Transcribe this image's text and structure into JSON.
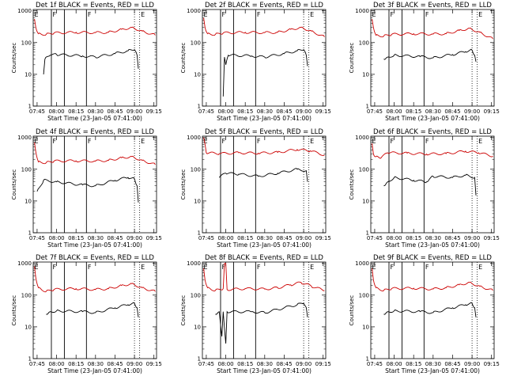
{
  "figure": {
    "x_label": "Start Time (23-Jan-05 07:41:00)",
    "y_label": "Counts/sec",
    "x_ticks": [
      "07:45",
      "08:00",
      "08:15",
      "08:30",
      "08:45",
      "09:00",
      "09:15"
    ],
    "y_ticks": [
      "1",
      "10",
      "100",
      "1000"
    ],
    "flag_labels": [
      "E",
      "F",
      "F",
      "E"
    ]
  },
  "chart_data": [
    {
      "type": "line",
      "title": "Det 1f BLACK = Events, RED = LLD",
      "xlim": [
        "07:42",
        "09:17"
      ],
      "ylim": [
        1,
        1100
      ],
      "y_scale": "log",
      "series": [
        {
          "color": "#cc0000",
          "values": [
            [
              "07:43",
              550
            ],
            [
              "07:44",
              300
            ],
            [
              "07:46",
              190
            ],
            [
              "07:52",
              180
            ],
            [
              "07:58",
              200
            ],
            [
              "08:15",
              210
            ],
            [
              "08:30",
              205
            ],
            [
              "08:40",
              210
            ],
            [
              "08:50",
              260
            ],
            [
              "08:58",
              300
            ],
            [
              "09:06",
              230
            ],
            [
              "09:16",
              170
            ]
          ]
        },
        {
          "color": "#000000",
          "values": [
            [
              "07:50",
              10
            ],
            [
              "07:51",
              30
            ],
            [
              "07:55",
              40
            ],
            [
              "08:00",
              42
            ],
            [
              "08:20",
              38
            ],
            [
              "08:30",
              35
            ],
            [
              "08:45",
              45
            ],
            [
              "08:55",
              55
            ],
            [
              "09:00",
              60
            ],
            [
              "09:02",
              40
            ],
            [
              "09:03",
              15
            ]
          ]
        }
      ],
      "vlines_solid": [
        "07:56",
        "08:06",
        "08:23"
      ],
      "vlines_dotted": [
        "09:00",
        "09:04"
      ]
    },
    {
      "type": "line",
      "title": "Det 2f BLACK = Events, RED = LLD",
      "xlim": [
        "07:42",
        "09:17"
      ],
      "ylim": [
        1,
        1100
      ],
      "y_scale": "log",
      "series": [
        {
          "color": "#cc0000",
          "values": [
            [
              "07:43",
              600
            ],
            [
              "07:44",
              300
            ],
            [
              "07:46",
              190
            ],
            [
              "07:52",
              180
            ],
            [
              "07:58",
              200
            ],
            [
              "08:15",
              210
            ],
            [
              "08:30",
              205
            ],
            [
              "08:40",
              210
            ],
            [
              "08:50",
              260
            ],
            [
              "08:58",
              300
            ],
            [
              "09:06",
              230
            ],
            [
              "09:16",
              150
            ]
          ]
        },
        {
          "color": "#000000",
          "values": [
            [
              "07:58",
              2
            ],
            [
              "07:59",
              35
            ],
            [
              "08:00",
              20
            ],
            [
              "08:02",
              40
            ],
            [
              "08:20",
              38
            ],
            [
              "08:30",
              35
            ],
            [
              "08:45",
              45
            ],
            [
              "08:55",
              55
            ],
            [
              "09:00",
              60
            ],
            [
              "09:02",
              40
            ],
            [
              "09:03",
              18
            ]
          ]
        }
      ],
      "vlines_solid": [
        "07:56",
        "08:06",
        "08:23"
      ],
      "vlines_dotted": [
        "09:00",
        "09:04"
      ]
    },
    {
      "type": "line",
      "title": "Det 3f BLACK = Events, RED = LLD",
      "xlim": [
        "07:42",
        "09:17"
      ],
      "ylim": [
        1,
        1100
      ],
      "y_scale": "log",
      "series": [
        {
          "color": "#cc0000",
          "values": [
            [
              "07:43",
              550
            ],
            [
              "07:44",
              300
            ],
            [
              "07:46",
              170
            ],
            [
              "07:52",
              160
            ],
            [
              "07:58",
              180
            ],
            [
              "08:15",
              190
            ],
            [
              "08:30",
              185
            ],
            [
              "08:40",
              190
            ],
            [
              "08:50",
              240
            ],
            [
              "08:58",
              280
            ],
            [
              "09:06",
              210
            ],
            [
              "09:16",
              130
            ]
          ]
        },
        {
          "color": "#000000",
          "values": [
            [
              "07:52",
              30
            ],
            [
              "07:55",
              35
            ],
            [
              "08:00",
              40
            ],
            [
              "08:20",
              36
            ],
            [
              "08:30",
              33
            ],
            [
              "08:45",
              42
            ],
            [
              "08:55",
              52
            ],
            [
              "09:00",
              58
            ],
            [
              "09:02",
              40
            ],
            [
              "09:03",
              25
            ]
          ]
        }
      ],
      "vlines_solid": [
        "07:56",
        "08:06",
        "08:23"
      ],
      "vlines_dotted": [
        "09:00",
        "09:04"
      ]
    },
    {
      "type": "line",
      "title": "Det 4f BLACK = Events, RED = LLD",
      "xlim": [
        "07:42",
        "09:17"
      ],
      "ylim": [
        1,
        1100
      ],
      "y_scale": "log",
      "series": [
        {
          "color": "#cc0000",
          "values": [
            [
              "07:43",
              700
            ],
            [
              "07:44",
              350
            ],
            [
              "07:46",
              170
            ],
            [
              "07:52",
              160
            ],
            [
              "07:58",
              180
            ],
            [
              "08:15",
              185
            ],
            [
              "08:30",
              180
            ],
            [
              "08:40",
              190
            ],
            [
              "08:50",
              230
            ],
            [
              "08:58",
              250
            ],
            [
              "09:06",
              190
            ],
            [
              "09:16",
              140
            ]
          ]
        },
        {
          "color": "#000000",
          "values": [
            [
              "07:45",
              20
            ],
            [
              "07:50",
              45
            ],
            [
              "08:00",
              40
            ],
            [
              "08:20",
              32
            ],
            [
              "08:30",
              30
            ],
            [
              "08:45",
              45
            ],
            [
              "08:55",
              55
            ],
            [
              "09:00",
              50
            ],
            [
              "09:02",
              30
            ],
            [
              "09:03",
              9
            ]
          ]
        }
      ],
      "vlines_solid": [
        "07:56",
        "08:06",
        "08:23"
      ],
      "vlines_dotted": [
        "09:00",
        "09:04"
      ]
    },
    {
      "type": "line",
      "title": "Det 5f BLACK = Events, RED = LLD",
      "xlim": [
        "07:42",
        "09:17"
      ],
      "ylim": [
        1,
        1100
      ],
      "y_scale": "log",
      "series": [
        {
          "color": "#cc0000",
          "values": [
            [
              "07:43",
              1000
            ],
            [
              "07:45",
              330
            ],
            [
              "07:55",
              310
            ],
            [
              "08:10",
              330
            ],
            [
              "08:25",
              320
            ],
            [
              "08:40",
              340
            ],
            [
              "08:55",
              420
            ],
            [
              "09:05",
              380
            ],
            [
              "09:16",
              280
            ]
          ]
        },
        {
          "color": "#000000",
          "values": [
            [
              "07:55",
              55
            ],
            [
              "08:00",
              75
            ],
            [
              "08:10",
              70
            ],
            [
              "08:25",
              60
            ],
            [
              "08:40",
              75
            ],
            [
              "08:55",
              100
            ],
            [
              "09:02",
              90
            ],
            [
              "09:03",
              40
            ]
          ]
        }
      ],
      "vlines_solid": [
        "07:56",
        "08:06",
        "08:23"
      ],
      "vlines_dotted": [
        "09:00",
        "09:04"
      ]
    },
    {
      "type": "line",
      "title": "Det 6f BLACK = Events, RED = LLD",
      "xlim": [
        "07:42",
        "09:17"
      ],
      "ylim": [
        1,
        1100
      ],
      "y_scale": "log",
      "series": [
        {
          "color": "#cc0000",
          "values": [
            [
              "07:43",
              650
            ],
            [
              "07:44",
              300
            ],
            [
              "07:46",
              250
            ],
            [
              "07:50",
              230
            ],
            [
              "07:55",
              330
            ],
            [
              "08:10",
              320
            ],
            [
              "08:25",
              300
            ],
            [
              "08:40",
              310
            ],
            [
              "08:55",
              370
            ],
            [
              "09:05",
              330
            ],
            [
              "09:16",
              260
            ]
          ]
        },
        {
          "color": "#000000",
          "values": [
            [
              "07:52",
              30
            ],
            [
              "07:55",
              40
            ],
            [
              "08:00",
              55
            ],
            [
              "08:15",
              45
            ],
            [
              "08:25",
              40
            ],
            [
              "08:30",
              60
            ],
            [
              "08:45",
              55
            ],
            [
              "08:55",
              65
            ],
            [
              "09:02",
              55
            ],
            [
              "09:03",
              15
            ]
          ]
        }
      ],
      "vlines_solid": [
        "07:56",
        "08:06",
        "08:23"
      ],
      "vlines_dotted": [
        "09:00",
        "09:04"
      ]
    },
    {
      "type": "line",
      "title": "Det 7f BLACK = Events, RED = LLD",
      "xlim": [
        "07:42",
        "09:17"
      ],
      "ylim": [
        1,
        1100
      ],
      "y_scale": "log",
      "series": [
        {
          "color": "#cc0000",
          "values": [
            [
              "07:43",
              800
            ],
            [
              "07:44",
              350
            ],
            [
              "07:46",
              170
            ],
            [
              "07:52",
              130
            ],
            [
              "07:58",
              150
            ],
            [
              "08:15",
              160
            ],
            [
              "08:30",
              150
            ],
            [
              "08:40",
              160
            ],
            [
              "08:50",
              200
            ],
            [
              "08:58",
              230
            ],
            [
              "09:06",
              170
            ],
            [
              "09:16",
              130
            ]
          ]
        },
        {
          "color": "#000000",
          "values": [
            [
              "07:52",
              25
            ],
            [
              "07:55",
              30
            ],
            [
              "08:00",
              32
            ],
            [
              "08:20",
              30
            ],
            [
              "08:30",
              28
            ],
            [
              "08:45",
              40
            ],
            [
              "08:55",
              50
            ],
            [
              "09:00",
              55
            ],
            [
              "09:02",
              40
            ],
            [
              "09:03",
              20
            ]
          ]
        }
      ],
      "vlines_solid": [
        "07:56",
        "08:06",
        "08:23"
      ],
      "vlines_dotted": [
        "09:00",
        "09:04"
      ]
    },
    {
      "type": "line",
      "title": "Det 8f BLACK = Events, RED = LLD",
      "xlim": [
        "07:42",
        "09:17"
      ],
      "ylim": [
        1,
        1100
      ],
      "y_scale": "log",
      "series": [
        {
          "color": "#cc0000",
          "values": [
            [
              "07:43",
              700
            ],
            [
              "07:44",
              300
            ],
            [
              "07:46",
              170
            ],
            [
              "07:52",
              140
            ],
            [
              "07:58",
              160
            ],
            [
              "07:59",
              1000
            ],
            [
              "08:00",
              1000
            ],
            [
              "08:01",
              150
            ],
            [
              "08:15",
              160
            ],
            [
              "08:30",
              155
            ],
            [
              "08:40",
              170
            ],
            [
              "08:50",
              210
            ],
            [
              "08:58",
              250
            ],
            [
              "09:06",
              190
            ],
            [
              "09:16",
              140
            ]
          ]
        },
        {
          "color": "#000000",
          "values": [
            [
              "07:52",
              25
            ],
            [
              "07:55",
              30
            ],
            [
              "07:57",
              5
            ],
            [
              "07:58",
              30
            ],
            [
              "08:00",
              3
            ],
            [
              "08:01",
              30
            ],
            [
              "08:20",
              30
            ],
            [
              "08:30",
              28
            ],
            [
              "08:45",
              40
            ],
            [
              "08:55",
              50
            ],
            [
              "09:00",
              55
            ],
            [
              "09:02",
              40
            ],
            [
              "09:03",
              20
            ]
          ]
        }
      ],
      "vlines_solid": [
        "07:56",
        "08:06",
        "08:23"
      ],
      "vlines_dotted": [
        "09:00",
        "09:04"
      ]
    },
    {
      "type": "line",
      "title": "Det 9f BLACK = Events, RED = LLD",
      "xlim": [
        "07:42",
        "09:17"
      ],
      "ylim": [
        1,
        1100
      ],
      "y_scale": "log",
      "series": [
        {
          "color": "#cc0000",
          "values": [
            [
              "07:43",
              700
            ],
            [
              "07:44",
              300
            ],
            [
              "07:46",
              170
            ],
            [
              "07:52",
              140
            ],
            [
              "07:58",
              160
            ],
            [
              "08:15",
              165
            ],
            [
              "08:30",
              155
            ],
            [
              "08:40",
              170
            ],
            [
              "08:50",
              210
            ],
            [
              "08:58",
              250
            ],
            [
              "09:06",
              190
            ],
            [
              "09:16",
              140
            ]
          ]
        },
        {
          "color": "#000000",
          "values": [
            [
              "07:52",
              25
            ],
            [
              "07:55",
              30
            ],
            [
              "08:00",
              32
            ],
            [
              "08:20",
              30
            ],
            [
              "08:30",
              28
            ],
            [
              "08:45",
              40
            ],
            [
              "08:55",
              50
            ],
            [
              "09:00",
              55
            ],
            [
              "09:02",
              40
            ],
            [
              "09:03",
              20
            ]
          ]
        }
      ],
      "vlines_solid": [
        "07:56",
        "08:06",
        "08:23"
      ],
      "vlines_dotted": [
        "09:00",
        "09:04"
      ]
    }
  ]
}
